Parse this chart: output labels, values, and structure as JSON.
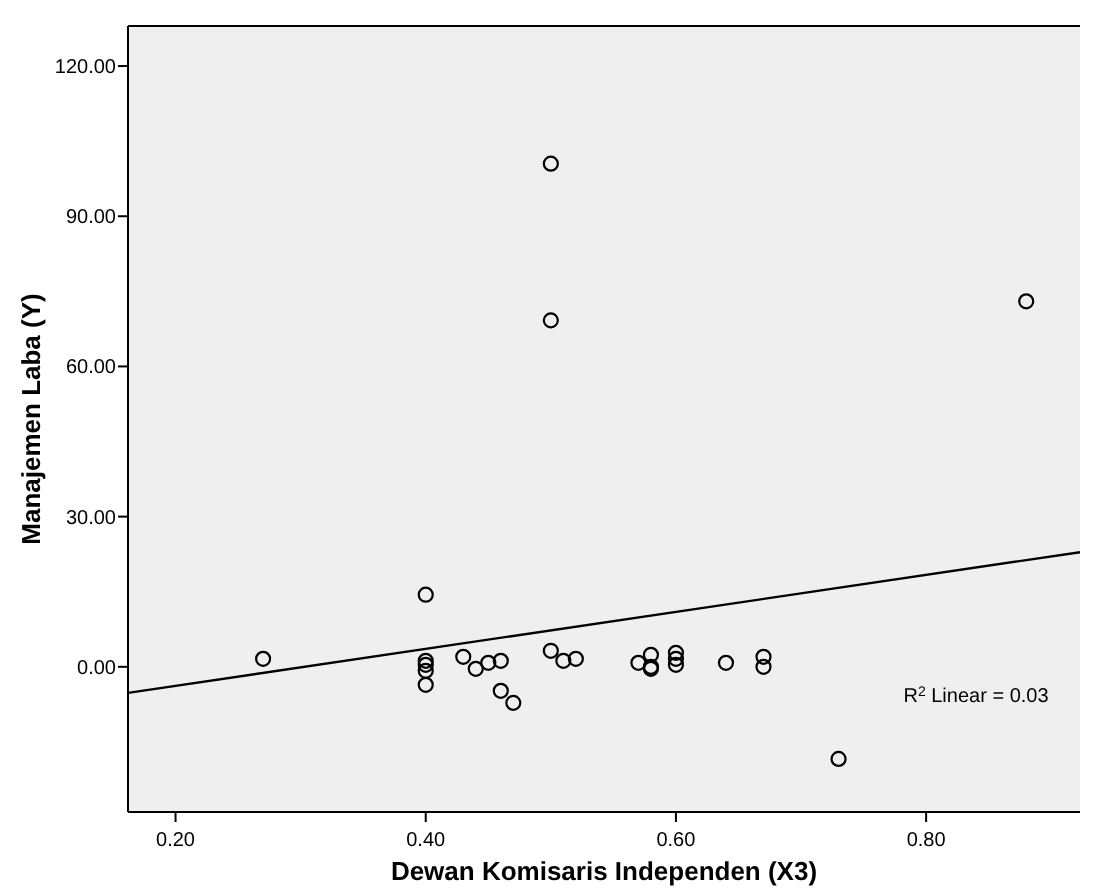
{
  "chart_data": {
    "type": "scatter",
    "xlabel": "Dewan Komisaris Independen (X3)",
    "ylabel": "Manajemen Laba (Y)",
    "xlim": [
      0.162,
      0.923
    ],
    "ylim": [
      -29,
      128
    ],
    "xticks": [
      {
        "value": 0.2,
        "label": "0.20"
      },
      {
        "value": 0.4,
        "label": "0.40"
      },
      {
        "value": 0.6,
        "label": "0.60"
      },
      {
        "value": 0.8,
        "label": "0.80"
      }
    ],
    "yticks": [
      {
        "value": 0,
        "label": "0.00"
      },
      {
        "value": 30,
        "label": "30.00"
      },
      {
        "value": 60,
        "label": "60.00"
      },
      {
        "value": 90,
        "label": "90.00"
      },
      {
        "value": 120,
        "label": "120.00"
      }
    ],
    "grid": false,
    "marker": "circle",
    "annotations": [
      "R$^{2}$ Linear = 0.03"
    ],
    "series": [
      {
        "color": "#000000",
        "x": [
          0.27,
          0.4,
          0.4,
          0.4,
          0.4,
          0.4,
          0.43,
          0.44,
          0.45,
          0.46,
          0.46,
          0.47,
          0.5,
          0.5,
          0.5,
          0.51,
          0.52,
          0.57,
          0.58,
          0.58,
          0.58,
          0.6,
          0.6,
          0.6,
          0.64,
          0.67,
          0.67,
          0.73,
          0.88
        ],
        "values": [
          1.6,
          14.4,
          1.2,
          0.4,
          -0.8,
          -3.6,
          2.0,
          -0.4,
          0.8,
          1.2,
          -4.8,
          -7.2,
          100.5,
          69.2,
          3.2,
          1.2,
          1.6,
          0.8,
          2.4,
          0,
          -0.4,
          2.8,
          1.6,
          0.4,
          0.8,
          2.0,
          0,
          -18.4,
          73.0
        ]
      },
      {
        "type": "line",
        "color": "#000000",
        "marker": "none",
        "x": [
          0.162,
          0.923
        ],
        "values": [
          -5.2,
          22.9
        ]
      }
    ]
  }
}
